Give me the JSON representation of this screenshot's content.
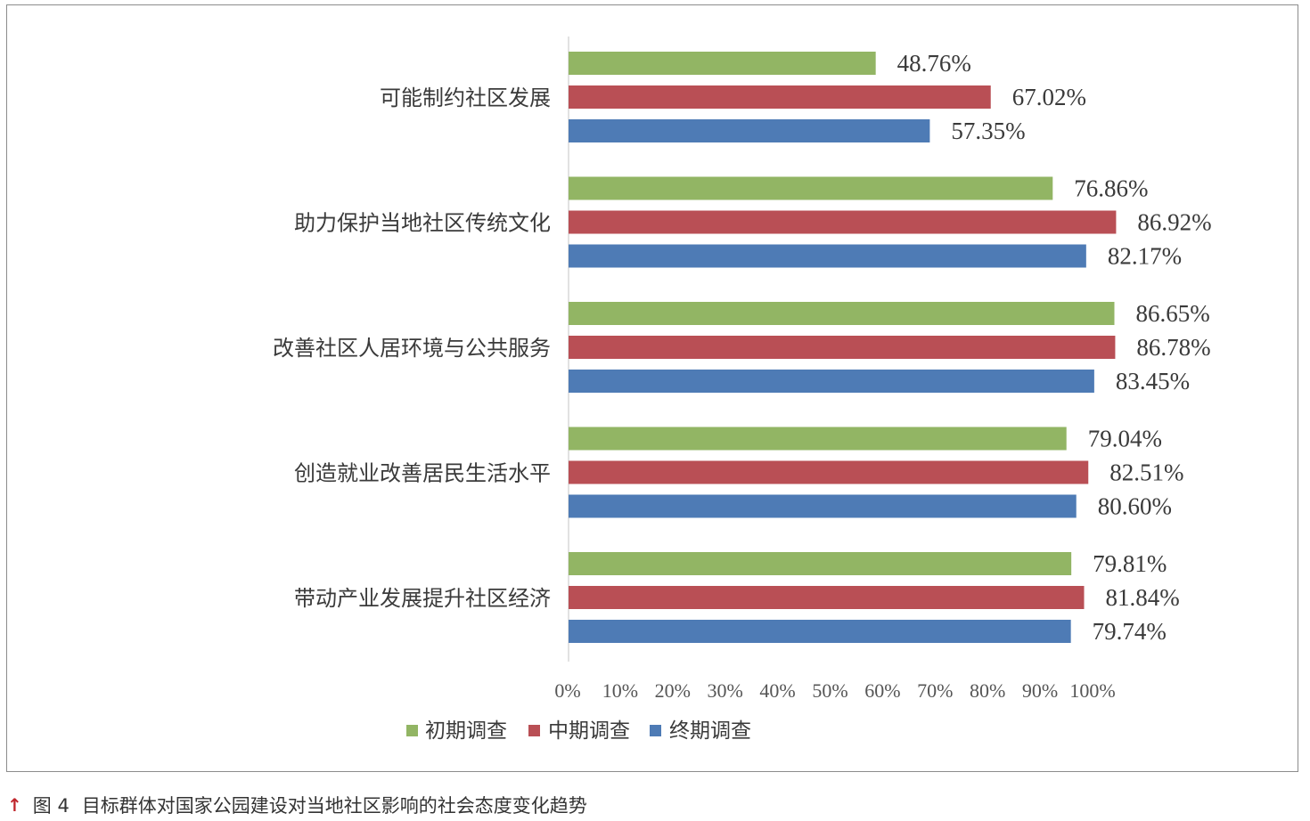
{
  "chart_data": {
    "type": "bar",
    "orientation": "horizontal",
    "categories": [
      "可能制约社区发展",
      "助力保护当地社区传统文化",
      "改善社区人居环境与公共服务",
      "创造就业改善居民生活水平",
      "带动产业发展提升社区经济"
    ],
    "series": [
      {
        "name": "初期调查",
        "color": "#92b564",
        "values": [
          48.76,
          76.86,
          86.65,
          79.04,
          79.81
        ],
        "labels": [
          "48.76%",
          "76.86%",
          "86.65%",
          "79.04%",
          "79.81%"
        ]
      },
      {
        "name": "中期调查",
        "color": "#b94f55",
        "values": [
          67.02,
          86.92,
          86.78,
          82.51,
          81.84
        ],
        "labels": [
          "67.02%",
          "86.92%",
          "86.78%",
          "82.51%",
          "81.84%"
        ]
      },
      {
        "name": "终期调查",
        "color": "#4e7bb5",
        "values": [
          57.35,
          82.17,
          83.45,
          80.6,
          79.74
        ],
        "labels": [
          "57.35%",
          "82.17%",
          "83.45%",
          "80.60%",
          "79.74%"
        ]
      }
    ],
    "xlim": [
      0,
      100
    ],
    "x_ticks": [
      "0%",
      "10%",
      "20%",
      "30%",
      "40%",
      "50%",
      "60%",
      "70%",
      "80%",
      "90%",
      "100%"
    ],
    "grid": false,
    "legend_position": "bottom"
  },
  "caption": {
    "figure_number": "图 4",
    "text": "目标群体对国家公园建设对当地社区影响的社会态度变化趋势",
    "icon": "red-arrow-up-icon"
  }
}
